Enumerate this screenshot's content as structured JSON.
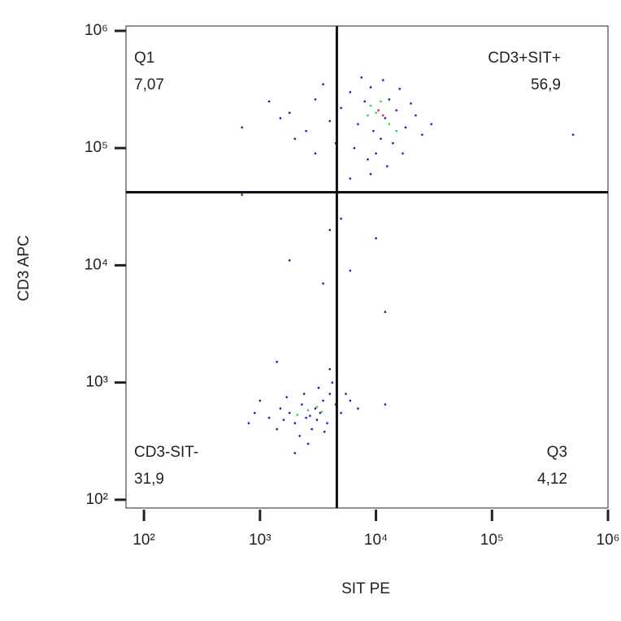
{
  "chart_data": {
    "type": "scatter",
    "x_label": "SIT PE",
    "y_label": "CD3 APC",
    "log_x": true,
    "log_y": true,
    "xlim": [
      70,
      1000000
    ],
    "ylim": [
      85,
      1100000
    ],
    "xticks": [
      {
        "value": 100,
        "label": "10²"
      },
      {
        "value": 1000,
        "label": "10³"
      },
      {
        "value": 10000,
        "label": "10⁴"
      },
      {
        "value": 100000,
        "label": "10⁵"
      },
      {
        "value": 1000000,
        "label": "10⁶"
      }
    ],
    "yticks": [
      {
        "value": 100,
        "label": "10²"
      },
      {
        "value": 1000,
        "label": "10³"
      },
      {
        "value": 10000,
        "label": "10⁴"
      },
      {
        "value": 100000,
        "label": "10⁵"
      },
      {
        "value": 1000000,
        "label": "10⁶"
      }
    ],
    "gates": {
      "x": 4600,
      "y": 42000
    },
    "quadrants": {
      "names": [
        "Q1",
        "CD3+SIT+",
        "CD3-SIT-",
        "Q3"
      ],
      "values": [
        7.07,
        56.9,
        31.9,
        4.12
      ],
      "value_labels": [
        "7,07",
        "56,9",
        "31,9",
        "4,12"
      ]
    },
    "series": [
      {
        "color": "#1c1cb4",
        "x": [
          8000,
          12000,
          9500,
          15000,
          6000,
          11000,
          7000,
          13000,
          18000,
          5000,
          9000,
          14000,
          10000,
          20000,
          4000,
          3000,
          2500,
          1800,
          6500,
          16000,
          8500,
          22000,
          3500,
          12500,
          30000,
          2000,
          1200,
          7500,
          11500,
          17000,
          9000,
          1500,
          25000,
          4500,
          700,
          500000,
          3000,
          6000,
          2500,
          3000,
          2000,
          3500,
          1800,
          4000,
          2800,
          1500,
          2200,
          3200,
          4500,
          1200,
          5000,
          2600,
          1700,
          3800,
          6000,
          900,
          1400,
          2300,
          3300,
          7000,
          2000,
          4200,
          1000,
          2700,
          3100,
          1600,
          5500,
          12000,
          800,
          2400,
          3600,
          4000,
          1800,
          3500,
          6000,
          10000,
          5000,
          12000,
          1400,
          4000,
          700
        ],
        "y": [
          250000,
          180000,
          140000,
          210000,
          300000,
          120000,
          160000,
          260000,
          150000,
          220000,
          330000,
          110000,
          90000,
          240000,
          170000,
          260000,
          140000,
          200000,
          100000,
          320000,
          80000,
          190000,
          350000,
          70000,
          160000,
          120000,
          250000,
          400000,
          380000,
          90000,
          60000,
          180000,
          130000,
          110000,
          150000,
          130000,
          90000,
          55000,
          500,
          600,
          450,
          700,
          550,
          800,
          400,
          600,
          350,
          900,
          650,
          500,
          550,
          300,
          750,
          450,
          700,
          550,
          400,
          650,
          550,
          600,
          250,
          1000,
          700,
          520,
          480,
          480,
          800,
          650,
          450,
          800,
          380,
          20000,
          11000,
          7000,
          9000,
          17000,
          25000,
          4000,
          1500,
          1300,
          40000
        ]
      },
      {
        "color": "#3ccc3c",
        "x": [
          10000,
          13000,
          8500,
          11000,
          15000,
          9000,
          2600,
          3100,
          2100,
          3400
        ],
        "y": [
          200000,
          160000,
          190000,
          250000,
          140000,
          230000,
          580,
          620,
          530,
          560
        ]
      },
      {
        "color": "#dd2222",
        "x": [
          10500,
          11500
        ],
        "y": [
          210000,
          190000
        ]
      }
    ]
  }
}
